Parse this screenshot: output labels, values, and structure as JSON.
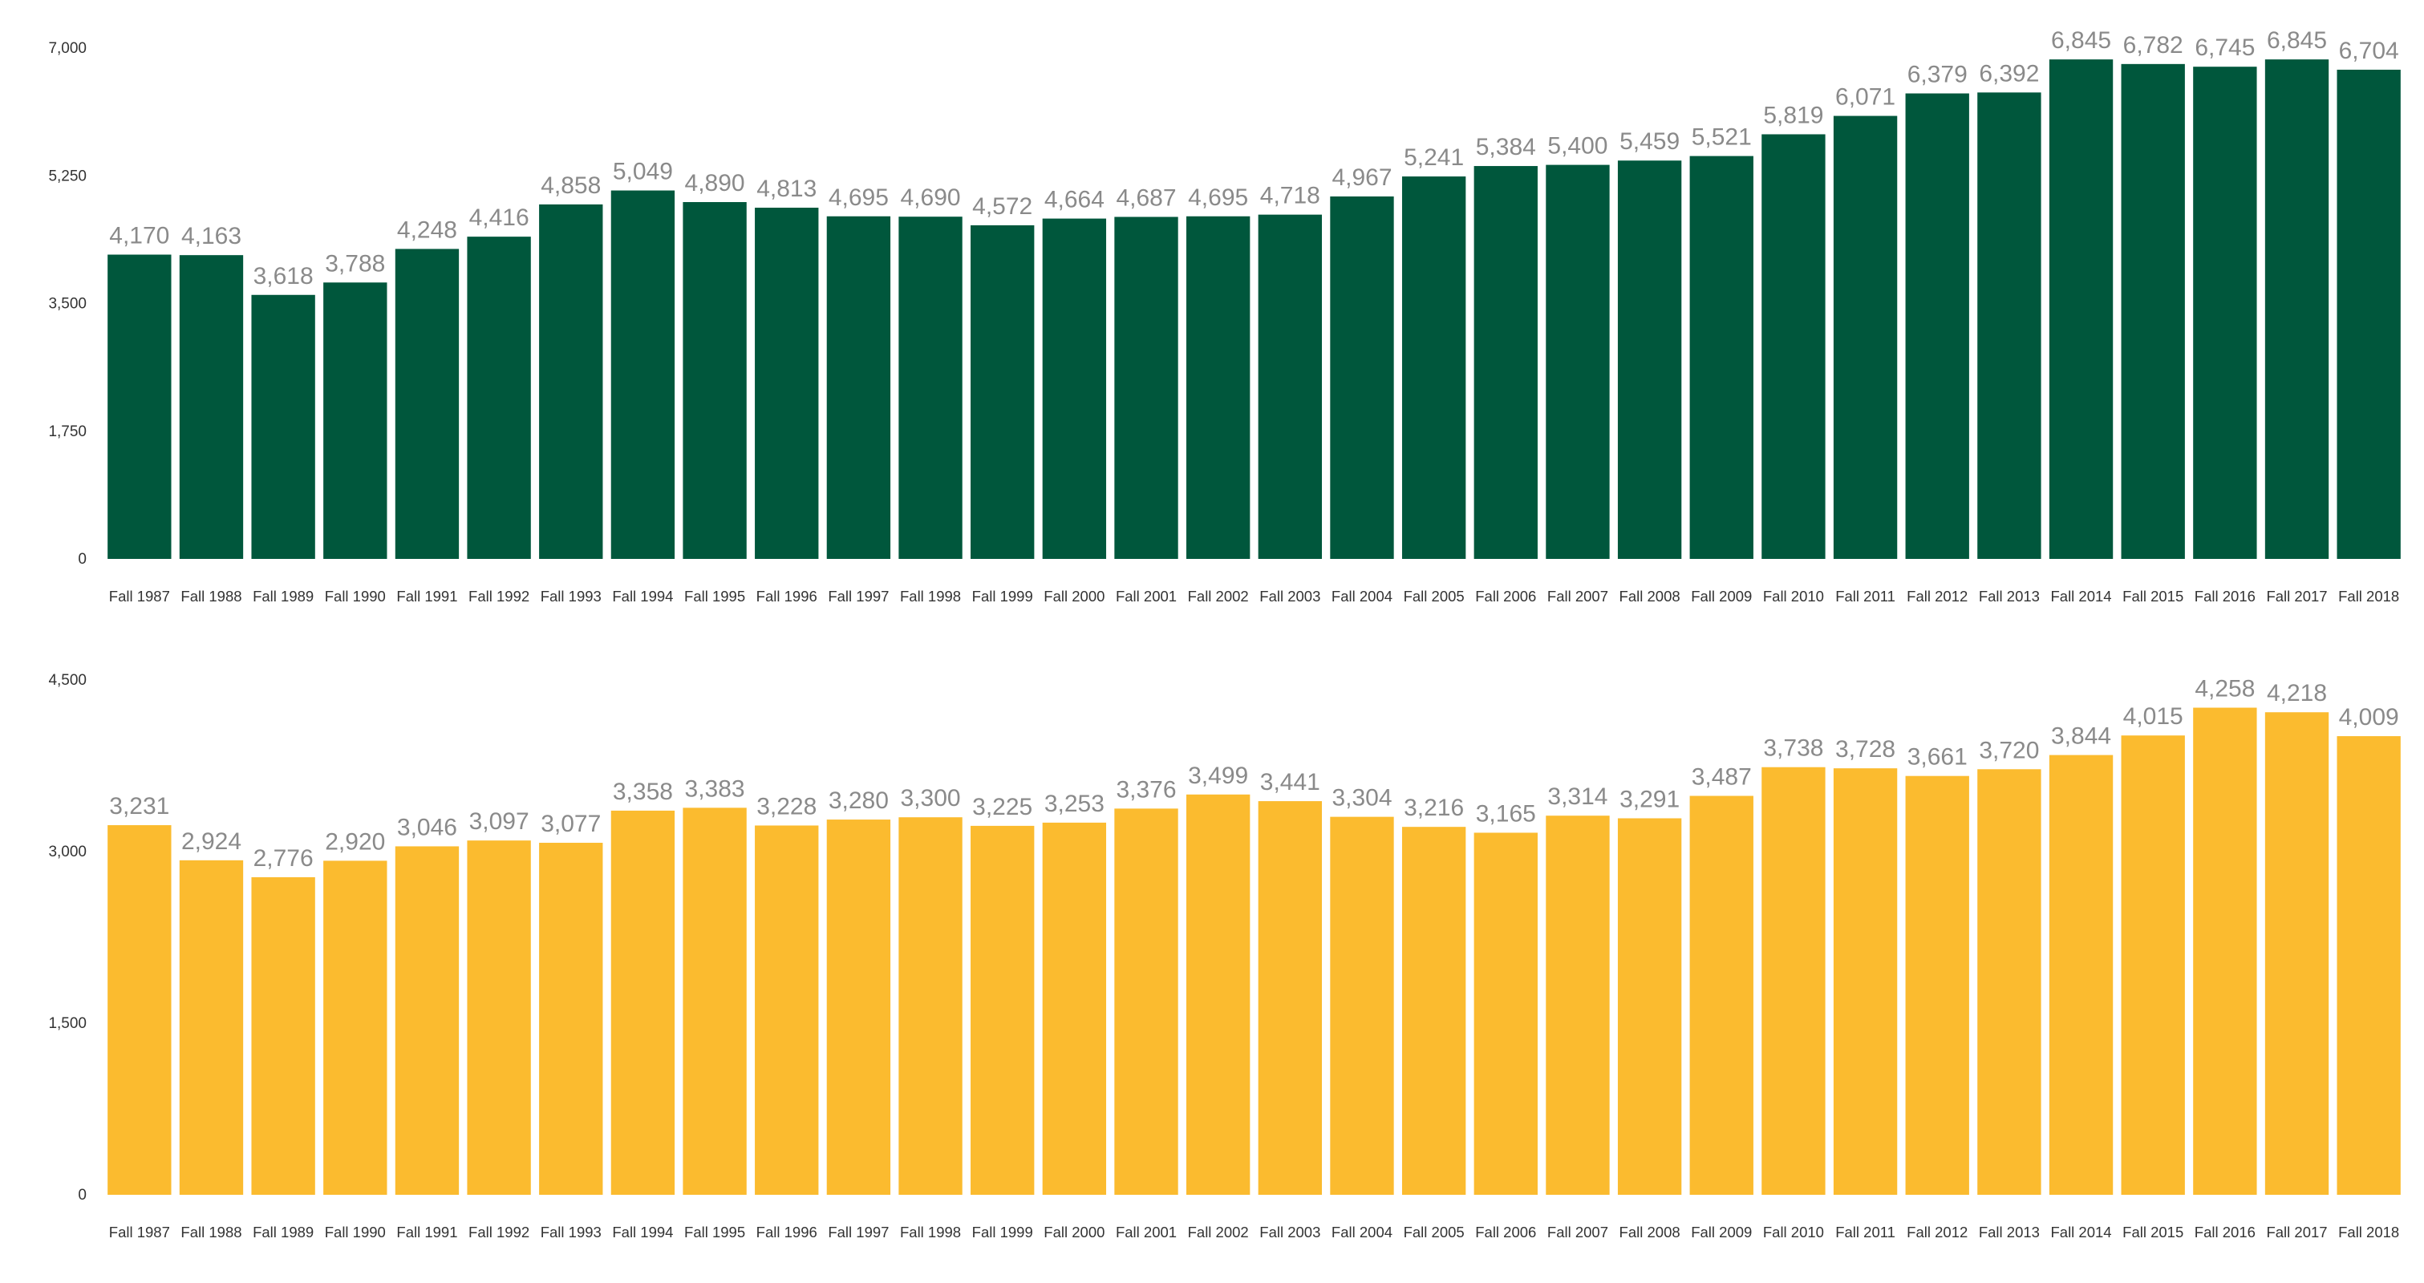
{
  "chart_data": [
    {
      "type": "bar",
      "color": "#00573c",
      "categories": [
        "Fall 1987",
        "Fall 1988",
        "Fall 1989",
        "Fall 1990",
        "Fall 1991",
        "Fall 1992",
        "Fall 1993",
        "Fall 1994",
        "Fall 1995",
        "Fall 1996",
        "Fall 1997",
        "Fall 1998",
        "Fall 1999",
        "Fall 2000",
        "Fall 2001",
        "Fall 2002",
        "Fall 2003",
        "Fall 2004",
        "Fall 2005",
        "Fall 2006",
        "Fall 2007",
        "Fall 2008",
        "Fall 2009",
        "Fall 2010",
        "Fall 2011",
        "Fall 2012",
        "Fall 2013",
        "Fall 2014",
        "Fall 2015",
        "Fall 2016",
        "Fall 2017",
        "Fall 2018"
      ],
      "values": [
        4170,
        4163,
        3618,
        3788,
        4248,
        4416,
        4858,
        5049,
        4890,
        4813,
        4695,
        4690,
        4572,
        4664,
        4687,
        4695,
        4718,
        4967,
        5241,
        5384,
        5400,
        5459,
        5521,
        5819,
        6071,
        6379,
        6392,
        6845,
        6782,
        6745,
        6845,
        6704
      ],
      "value_labels": [
        "4,170",
        "4,163",
        "3,618",
        "3,788",
        "4,248",
        "4,416",
        "4,858",
        "5,049",
        "4,890",
        "4,813",
        "4,695",
        "4,690",
        "4,572",
        "4,664",
        "4,687",
        "4,695",
        "4,718",
        "4,967",
        "5,241",
        "5,384",
        "5,400",
        "5,459",
        "5,521",
        "5,819",
        "6,071",
        "6,379",
        "6,392",
        "6,845",
        "6,782",
        "6,745",
        "6,845",
        "6,704"
      ],
      "yticks": [
        0,
        1750,
        3500,
        5250,
        7000
      ],
      "ytick_labels": [
        "0",
        "1,750",
        "3,500",
        "5,250",
        "7,000"
      ],
      "ylim": [
        0,
        7000
      ],
      "grid": false,
      "title": "",
      "xlabel": "",
      "ylabel": ""
    },
    {
      "type": "bar",
      "color": "#fbbb2f",
      "categories": [
        "Fall 1987",
        "Fall 1988",
        "Fall 1989",
        "Fall 1990",
        "Fall 1991",
        "Fall 1992",
        "Fall 1993",
        "Fall 1994",
        "Fall 1995",
        "Fall 1996",
        "Fall 1997",
        "Fall 1998",
        "Fall 1999",
        "Fall 2000",
        "Fall 2001",
        "Fall 2002",
        "Fall 2003",
        "Fall 2004",
        "Fall 2005",
        "Fall 2006",
        "Fall 2007",
        "Fall 2008",
        "Fall 2009",
        "Fall 2010",
        "Fall 2011",
        "Fall 2012",
        "Fall 2013",
        "Fall 2014",
        "Fall 2015",
        "Fall 2016",
        "Fall 2017",
        "Fall 2018"
      ],
      "values": [
        3231,
        2924,
        2776,
        2920,
        3046,
        3097,
        3077,
        3358,
        3383,
        3228,
        3280,
        3300,
        3225,
        3253,
        3376,
        3499,
        3441,
        3304,
        3216,
        3165,
        3314,
        3291,
        3487,
        3738,
        3728,
        3661,
        3720,
        3844,
        4015,
        4258,
        4218,
        4009
      ],
      "value_labels": [
        "3,231",
        "2,924",
        "2,776",
        "2,920",
        "3,046",
        "3,097",
        "3,077",
        "3,358",
        "3,383",
        "3,228",
        "3,280",
        "3,300",
        "3,225",
        "3,253",
        "3,376",
        "3,499",
        "3,441",
        "3,304",
        "3,216",
        "3,165",
        "3,314",
        "3,291",
        "3,487",
        "3,738",
        "3,728",
        "3,661",
        "3,720",
        "3,844",
        "4,015",
        "4,258",
        "4,218",
        "4,009"
      ],
      "yticks": [
        0,
        1500,
        3000,
        4500
      ],
      "ytick_labels": [
        "0",
        "1,500",
        "3,000",
        "4,500"
      ],
      "ylim": [
        0,
        4500
      ],
      "grid": false,
      "title": "",
      "xlabel": "",
      "ylabel": ""
    }
  ]
}
